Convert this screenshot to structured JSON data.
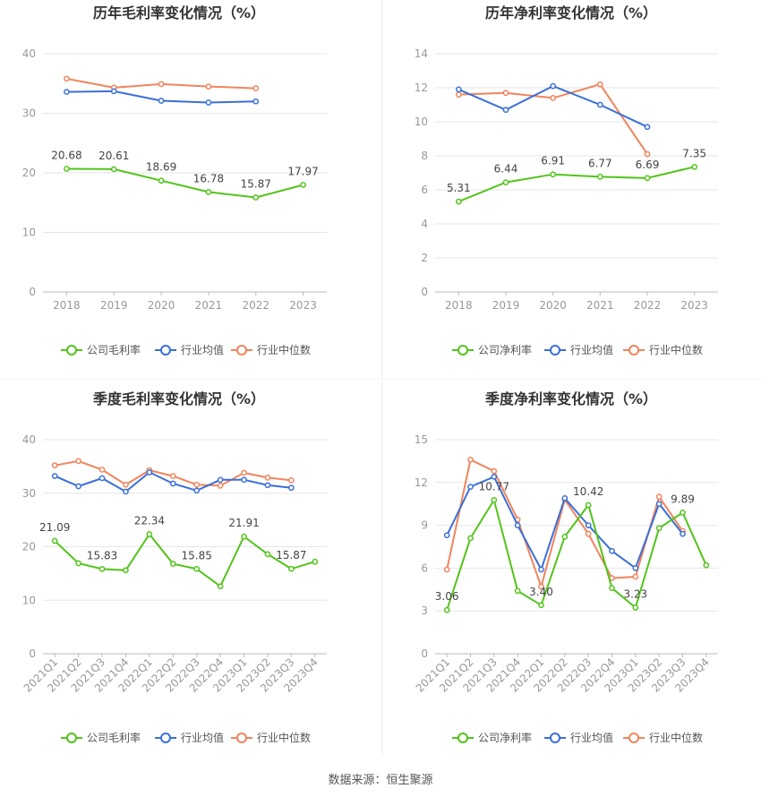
{
  "source_text": "数据来源：恒生聚源",
  "series_colors": {
    "company": "#52c41a",
    "avg": "#3a6fd8",
    "median": "#f0845c"
  },
  "chart_data": [
    {
      "type": "line",
      "title": "历年毛利率变化情况（%）",
      "categories": [
        "2018",
        "2019",
        "2020",
        "2021",
        "2022",
        "2023"
      ],
      "ylim": [
        0,
        40
      ],
      "yticks": [
        "0",
        "10",
        "20",
        "30",
        "40"
      ],
      "grid": true,
      "legend_position": "bottom",
      "series": [
        {
          "name": "公司毛利率",
          "values": [
            20.68,
            20.61,
            18.69,
            16.78,
            15.87,
            17.97
          ],
          "labels": [
            "20.68",
            "20.61",
            "18.69",
            "16.78",
            "15.87",
            "17.97"
          ]
        },
        {
          "name": "行业均值",
          "values": [
            33.6,
            33.7,
            32.1,
            31.8,
            32.0,
            null
          ]
        },
        {
          "name": "行业中位数",
          "values": [
            35.8,
            34.3,
            34.9,
            34.5,
            34.2,
            null
          ]
        }
      ]
    },
    {
      "type": "line",
      "title": "历年净利率变化情况（%）",
      "categories": [
        "2018",
        "2019",
        "2020",
        "2021",
        "2022",
        "2023"
      ],
      "ylim": [
        0,
        14
      ],
      "yticks": [
        "0",
        "2",
        "4",
        "6",
        "8",
        "10",
        "12",
        "14"
      ],
      "grid": true,
      "legend_position": "bottom",
      "series": [
        {
          "name": "公司净利率",
          "values": [
            5.31,
            6.44,
            6.91,
            6.77,
            6.69,
            7.35
          ],
          "labels": [
            "5.31",
            "6.44",
            "6.91",
            "6.77",
            "6.69",
            "7.35"
          ]
        },
        {
          "name": "行业均值",
          "values": [
            11.9,
            10.7,
            12.1,
            11.0,
            9.7,
            null
          ]
        },
        {
          "name": "行业中位数",
          "values": [
            11.6,
            11.7,
            11.4,
            12.2,
            8.1,
            null
          ]
        }
      ]
    },
    {
      "type": "line",
      "title": "季度毛利率变化情况（%）",
      "categories": [
        "2021Q1",
        "2021Q2",
        "2021Q3",
        "2021Q4",
        "2022Q1",
        "2022Q2",
        "2022Q3",
        "2022Q4",
        "2023Q1",
        "2023Q2",
        "2023Q3",
        "2023Q4"
      ],
      "ylim": [
        0,
        40
      ],
      "yticks": [
        "0",
        "10",
        "20",
        "30",
        "40"
      ],
      "grid": true,
      "legend_position": "bottom",
      "series": [
        {
          "name": "公司毛利率",
          "values": [
            21.09,
            16.9,
            15.83,
            15.6,
            22.34,
            16.8,
            15.85,
            12.6,
            21.91,
            18.6,
            15.87,
            17.2
          ],
          "labels": [
            "21.09",
            "",
            "15.83",
            "",
            "22.34",
            "",
            "15.85",
            "",
            "21.91",
            "",
            "15.87",
            ""
          ]
        },
        {
          "name": "行业均值",
          "values": [
            33.2,
            31.3,
            32.8,
            30.3,
            33.9,
            31.8,
            30.5,
            32.5,
            32.5,
            31.5,
            31.0,
            null
          ]
        },
        {
          "name": "行业中位数",
          "values": [
            35.2,
            36.0,
            34.4,
            31.6,
            34.3,
            33.2,
            31.6,
            31.4,
            33.8,
            32.9,
            32.4,
            null
          ]
        }
      ]
    },
    {
      "type": "line",
      "title": "季度净利率变化情况（%）",
      "categories": [
        "2021Q1",
        "2021Q2",
        "2021Q3",
        "2021Q4",
        "2022Q1",
        "2022Q2",
        "2022Q3",
        "2022Q4",
        "2023Q1",
        "2023Q2",
        "2023Q3",
        "2023Q4"
      ],
      "ylim": [
        0,
        15
      ],
      "yticks": [
        "0",
        "3",
        "6",
        "9",
        "12",
        "15"
      ],
      "grid": true,
      "legend_position": "bottom",
      "series": [
        {
          "name": "公司净利率",
          "values": [
            3.06,
            8.1,
            10.77,
            4.4,
            3.4,
            8.2,
            10.42,
            4.6,
            3.23,
            8.8,
            9.89,
            6.2
          ],
          "labels": [
            "3.06",
            "",
            "10.77",
            "",
            "3.40",
            "",
            "10.42",
            "",
            "3.23",
            "",
            "9.89",
            ""
          ]
        },
        {
          "name": "行业均值",
          "values": [
            8.3,
            11.7,
            12.4,
            9.0,
            5.9,
            10.9,
            9.0,
            7.2,
            6.0,
            10.5,
            8.4,
            null
          ]
        },
        {
          "name": "行业中位数",
          "values": [
            5.9,
            13.6,
            12.8,
            9.4,
            4.7,
            10.8,
            8.4,
            5.3,
            5.4,
            11.0,
            8.6,
            null
          ]
        }
      ]
    }
  ]
}
